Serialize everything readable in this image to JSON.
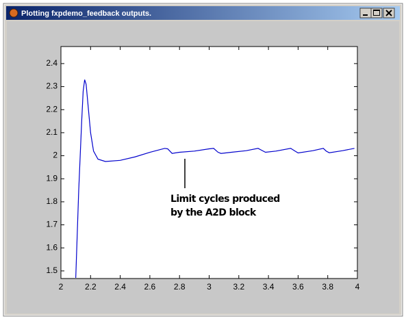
{
  "window": {
    "title": "Plotting fxpdemo_feedback outputs."
  },
  "chart_data": {
    "type": "line",
    "x": [
      2.1,
      2.12,
      2.14,
      2.15,
      2.16,
      2.17,
      2.18,
      2.2,
      2.22,
      2.25,
      2.3,
      2.4,
      2.5,
      2.6,
      2.7,
      2.72,
      2.75,
      2.8,
      2.9,
      3.0,
      3.03,
      3.06,
      3.08,
      3.15,
      3.25,
      3.33,
      3.35,
      3.38,
      3.45,
      3.55,
      3.58,
      3.6,
      3.7,
      3.77,
      3.79,
      3.81,
      3.9,
      3.98
    ],
    "values": [
      1.47,
      1.85,
      2.15,
      2.28,
      2.33,
      2.31,
      2.24,
      2.1,
      2.02,
      1.985,
      1.975,
      1.98,
      1.995,
      2.015,
      2.032,
      2.03,
      2.01,
      2.015,
      2.02,
      2.03,
      2.032,
      2.015,
      2.01,
      2.015,
      2.022,
      2.032,
      2.025,
      2.015,
      2.02,
      2.032,
      2.02,
      2.012,
      2.022,
      2.032,
      2.02,
      2.013,
      2.022,
      2.032
    ],
    "color": "#0000cc",
    "xlim": [
      2,
      4
    ],
    "xticks": [
      2,
      2.2,
      2.4,
      2.6,
      2.8,
      3,
      3.2,
      3.4,
      3.6,
      3.8,
      4
    ],
    "ylim": [
      1.467,
      2.474
    ],
    "yticks": [
      1.5,
      1.6,
      1.7,
      1.8,
      1.9,
      2,
      2.1,
      2.2,
      2.3,
      2.4
    ],
    "grid": false,
    "annotations": [
      "Limit cycles produced",
      "by the A2D block"
    ]
  }
}
